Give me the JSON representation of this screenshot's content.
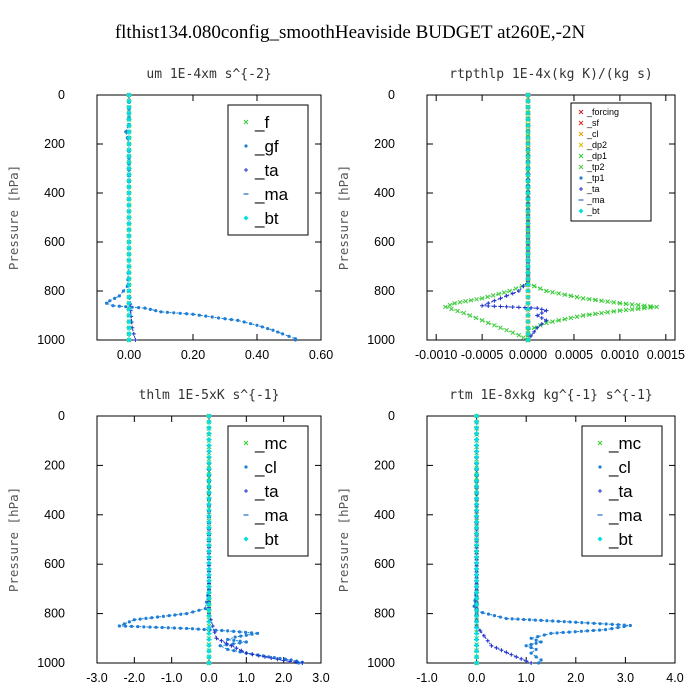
{
  "figure": {
    "title": "flthist134.080config_smoothHeaviside  BUDGET at260E,-2N"
  },
  "chart_data": [
    {
      "type": "line",
      "title": "um  1E-4xm s^{-2}",
      "ylabel": "Pressure [hPa]",
      "xlim": [
        -0.1,
        0.6
      ],
      "ylim": [
        1000,
        0
      ],
      "xticks": [
        "0.00",
        "0.20",
        "0.40",
        "0.60"
      ],
      "xtick_values": [
        0.0,
        0.2,
        0.4,
        0.6
      ],
      "yticks": [
        0,
        200,
        400,
        600,
        800,
        1000
      ],
      "legend": {
        "position": "top-right",
        "size": "large"
      },
      "series": [
        {
          "name": "_f",
          "color": "#33cc33",
          "marker": "x",
          "points": [
            [
              0,
              0
            ],
            [
              0,
              100
            ],
            [
              0,
              200
            ],
            [
              0,
              300
            ],
            [
              0,
              400
            ],
            [
              0,
              500
            ],
            [
              0,
              600
            ],
            [
              0,
              700
            ],
            [
              0,
              800
            ],
            [
              0,
              850
            ],
            [
              0,
              900
            ],
            [
              0,
              950
            ],
            [
              0,
              1000
            ]
          ]
        },
        {
          "name": "_gf",
          "color": "#1f7fd6",
          "marker": "dot",
          "points": [
            [
              0,
              0
            ],
            [
              0,
              60
            ],
            [
              0,
              120
            ],
            [
              -0.01,
              150
            ],
            [
              0,
              200
            ],
            [
              0,
              260
            ],
            [
              0,
              330
            ],
            [
              0,
              400
            ],
            [
              0,
              500
            ],
            [
              0,
              600
            ],
            [
              0,
              700
            ],
            [
              -0.005,
              780
            ],
            [
              -0.03,
              820
            ],
            [
              -0.06,
              840
            ],
            [
              -0.07,
              850
            ],
            [
              -0.05,
              860
            ],
            [
              0.05,
              870
            ],
            [
              0.1,
              885
            ],
            [
              0.2,
              895
            ],
            [
              0.28,
              910
            ],
            [
              0.34,
              920
            ],
            [
              0.4,
              940
            ],
            [
              0.45,
              960
            ],
            [
              0.48,
              975
            ],
            [
              0.5,
              985
            ],
            [
              0.52,
              995
            ],
            [
              0.52,
              1000
            ]
          ]
        },
        {
          "name": "_ta",
          "color": "#2233cc",
          "marker": "plus",
          "points": [
            [
              0,
              0
            ],
            [
              0,
              500
            ],
            [
              0,
              800
            ],
            [
              0.005,
              880
            ],
            [
              0.01,
              950
            ],
            [
              0.02,
              1000
            ]
          ]
        },
        {
          "name": "_ma",
          "color": "#1b6fc7",
          "marker": "dash",
          "points": [
            [
              0,
              0
            ],
            [
              0,
              500
            ],
            [
              0,
              1000
            ]
          ]
        },
        {
          "name": "_bt",
          "color": "#00e0e0",
          "marker": "diamond",
          "points": [
            [
              0,
              0
            ],
            [
              0,
              500
            ],
            [
              0,
              1000
            ]
          ]
        }
      ]
    },
    {
      "type": "line",
      "title": "rtpthlp  1E-4x(kg K)/(kg s)",
      "ylabel": "Pressure [hPa]",
      "xlim": [
        -0.0011,
        0.0016
      ],
      "ylim": [
        1000,
        0
      ],
      "xticks": [
        "-0.0010",
        "-0.0005",
        "0.0000",
        "0.0005",
        "0.0010",
        "0.0015"
      ],
      "xtick_values": [
        -0.001,
        -0.0005,
        0.0,
        0.0005,
        0.001,
        0.0015
      ],
      "yticks": [
        0,
        200,
        400,
        600,
        800,
        1000
      ],
      "legend": {
        "position": "top-right",
        "size": "small"
      },
      "series": [
        {
          "name": "_forcing",
          "color": "#cc2222",
          "marker": "x",
          "points": [
            [
              0,
              0
            ],
            [
              0,
              500
            ],
            [
              0,
              1000
            ]
          ]
        },
        {
          "name": "_sf",
          "color": "#d03020",
          "marker": "x",
          "points": [
            [
              0,
              0
            ],
            [
              0,
              500
            ],
            [
              0,
              1000
            ]
          ]
        },
        {
          "name": "_cl",
          "color": "#e8a000",
          "marker": "x",
          "points": [
            [
              0,
              0
            ],
            [
              0,
              500
            ],
            [
              0,
              1000
            ]
          ]
        },
        {
          "name": "_dp2",
          "color": "#d8c000",
          "marker": "x",
          "points": [
            [
              0,
              0
            ],
            [
              0,
              500
            ],
            [
              0,
              1000
            ]
          ]
        },
        {
          "name": "_dp1",
          "color": "#33cc33",
          "marker": "x",
          "points": [
            [
              0,
              0
            ],
            [
              0,
              700
            ],
            [
              0,
              770
            ],
            [
              0.0002,
              800
            ],
            [
              0.0006,
              830
            ],
            [
              0.001,
              850
            ],
            [
              0.0014,
              865
            ],
            [
              0.001,
              880
            ],
            [
              0.0006,
              900
            ],
            [
              0.0002,
              930
            ],
            [
              0,
              960
            ],
            [
              0,
              1000
            ]
          ]
        },
        {
          "name": "_tp2",
          "color": "#44cc44",
          "marker": "x",
          "points": [
            [
              0,
              0
            ],
            [
              0,
              700
            ],
            [
              0,
              770
            ],
            [
              -0.0002,
              800
            ],
            [
              -0.0005,
              830
            ],
            [
              -0.0008,
              850
            ],
            [
              -0.0009,
              865
            ],
            [
              -0.0007,
              890
            ],
            [
              -0.0005,
              920
            ],
            [
              -0.0003,
              950
            ],
            [
              -0.0001,
              980
            ],
            [
              0,
              1000
            ]
          ]
        },
        {
          "name": "_tp1",
          "color": "#1f7fd6",
          "marker": "dot",
          "points": [
            [
              0,
              0
            ],
            [
              0,
              500
            ],
            [
              0,
              1000
            ]
          ]
        },
        {
          "name": "_ta",
          "color": "#2233cc",
          "marker": "plus",
          "points": [
            [
              0,
              0
            ],
            [
              0,
              760
            ],
            [
              -0.0001,
              800
            ],
            [
              -0.0003,
              830
            ],
            [
              -0.0005,
              860
            ],
            [
              0.0001,
              870
            ],
            [
              0.0002,
              880
            ],
            [
              0.0001,
              900
            ],
            [
              0.0002,
              920
            ],
            [
              0.0001,
              950
            ],
            [
              0,
              1000
            ]
          ]
        },
        {
          "name": "_ma",
          "color": "#1b6fc7",
          "marker": "dash",
          "points": [
            [
              0,
              0
            ],
            [
              0,
              500
            ],
            [
              0,
              1000
            ]
          ]
        },
        {
          "name": "_bt",
          "color": "#00e0e0",
          "marker": "diamond",
          "points": [
            [
              0,
              0
            ],
            [
              0,
              500
            ],
            [
              0,
              1000
            ]
          ]
        }
      ]
    },
    {
      "type": "line",
      "title": "thlm  1E-5xK s^{-1}",
      "ylabel": "Pressure [hPa]",
      "xlim": [
        -3.0,
        3.0
      ],
      "ylim": [
        1000,
        0
      ],
      "xticks": [
        "-3.0",
        "-2.0",
        "-1.0",
        "0.0",
        "1.0",
        "2.0",
        "3.0"
      ],
      "xtick_values": [
        -3,
        -2,
        -1,
        0,
        1,
        2,
        3
      ],
      "yticks": [
        0,
        200,
        400,
        600,
        800,
        1000
      ],
      "legend": {
        "position": "top-right",
        "size": "large"
      },
      "series": [
        {
          "name": "_mc",
          "color": "#33cc33",
          "marker": "x",
          "points": [
            [
              0,
              0
            ],
            [
              0,
              200
            ],
            [
              0,
              400
            ],
            [
              0,
              600
            ],
            [
              0,
              800
            ],
            [
              0,
              1000
            ]
          ]
        },
        {
          "name": "_cl",
          "color": "#1f7fd6",
          "marker": "dot",
          "points": [
            [
              0,
              0
            ],
            [
              0,
              500
            ],
            [
              0,
              700
            ],
            [
              -0.1,
              780
            ],
            [
              -0.6,
              800
            ],
            [
              -2.0,
              825
            ],
            [
              -2.4,
              850
            ],
            [
              -0.6,
              860
            ],
            [
              0.5,
              870
            ],
            [
              1.3,
              880
            ],
            [
              0.7,
              895
            ],
            [
              0.5,
              905
            ],
            [
              1.0,
              915
            ],
            [
              0.3,
              930
            ],
            [
              0.5,
              945
            ],
            [
              1.0,
              960
            ],
            [
              1.6,
              975
            ],
            [
              2.2,
              988
            ],
            [
              2.5,
              997
            ],
            [
              2.4,
              1000
            ]
          ]
        },
        {
          "name": "_ta",
          "color": "#2233cc",
          "marker": "plus",
          "points": [
            [
              0,
              0
            ],
            [
              0,
              800
            ],
            [
              0.2,
              900
            ],
            [
              1.0,
              960
            ],
            [
              2.0,
              990
            ],
            [
              2.5,
              1000
            ]
          ]
        },
        {
          "name": "_ma",
          "color": "#1b6fc7",
          "marker": "dash",
          "points": [
            [
              0,
              0
            ],
            [
              0,
              500
            ],
            [
              0,
              1000
            ]
          ]
        },
        {
          "name": "_bt",
          "color": "#00e0e0",
          "marker": "diamond",
          "points": [
            [
              0,
              0
            ],
            [
              0,
              500
            ],
            [
              0,
              1000
            ]
          ]
        }
      ]
    },
    {
      "type": "line",
      "title": "rtm  1E-8xkg kg^{-1} s^{-1}",
      "ylabel": "Pressure [hPa]",
      "xlim": [
        -1.0,
        4.0
      ],
      "ylim": [
        1000,
        0
      ],
      "xticks": [
        "-1.0",
        "0.0",
        "1.0",
        "2.0",
        "3.0",
        "4.0"
      ],
      "xtick_values": [
        -1,
        0,
        1,
        2,
        3,
        4
      ],
      "yticks": [
        0,
        200,
        400,
        600,
        800,
        1000
      ],
      "legend": {
        "position": "top-right",
        "size": "large"
      },
      "series": [
        {
          "name": "_mc",
          "color": "#33cc33",
          "marker": "x",
          "points": [
            [
              0,
              0
            ],
            [
              0,
              200
            ],
            [
              0,
              400
            ],
            [
              0,
              600
            ],
            [
              0,
              800
            ],
            [
              0,
              1000
            ]
          ]
        },
        {
          "name": "_cl",
          "color": "#1f7fd6",
          "marker": "dot",
          "points": [
            [
              0,
              0
            ],
            [
              0,
              500
            ],
            [
              0,
              700
            ],
            [
              -0.05,
              770
            ],
            [
              0,
              790
            ],
            [
              0.6,
              820
            ],
            [
              2.0,
              835
            ],
            [
              3.1,
              848
            ],
            [
              2.6,
              865
            ],
            [
              1.5,
              880
            ],
            [
              1.1,
              900
            ],
            [
              1.3,
              915
            ],
            [
              1.0,
              930
            ],
            [
              1.2,
              945
            ],
            [
              1.1,
              960
            ],
            [
              1.2,
              975
            ],
            [
              1.3,
              988
            ],
            [
              1.25,
              1000
            ]
          ]
        },
        {
          "name": "_ta",
          "color": "#2233cc",
          "marker": "plus",
          "points": [
            [
              0,
              0
            ],
            [
              0,
              850
            ],
            [
              0.3,
              930
            ],
            [
              0.8,
              975
            ],
            [
              1.1,
              1000
            ]
          ]
        },
        {
          "name": "_ma",
          "color": "#1b6fc7",
          "marker": "dash",
          "points": [
            [
              0,
              0
            ],
            [
              0,
              500
            ],
            [
              0,
              1000
            ]
          ]
        },
        {
          "name": "_bt",
          "color": "#00e0e0",
          "marker": "diamond",
          "points": [
            [
              0,
              0
            ],
            [
              0,
              500
            ],
            [
              0,
              1000
            ]
          ]
        }
      ]
    }
  ]
}
